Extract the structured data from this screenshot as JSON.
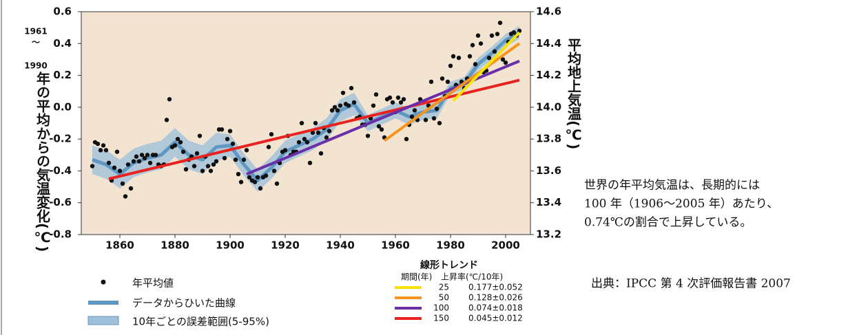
{
  "chart_data": {
    "type": "scatter",
    "ylabel": [
      "1961",
      "〜",
      "1990",
      "年の平均からの気温変化(℃)"
    ],
    "y2label": "平均地上気温(℃)",
    "background": "#f3e4d2",
    "xlim": [
      1846,
      2009
    ],
    "xticks": [
      1860,
      1880,
      1900,
      1920,
      1940,
      1960,
      1980,
      2000
    ],
    "ylim": [
      -0.8,
      0.6
    ],
    "yticks": [
      -0.8,
      -0.6,
      -0.4,
      -0.2,
      {
        "value": 0,
        "label": "0.0"
      },
      0.2,
      0.4,
      0.6
    ],
    "y2lim": [
      13.2,
      14.6
    ],
    "y2ticks": [
      13.2,
      13.4,
      13.6,
      13.8,
      {
        "value": 14,
        "label": "14.0"
      },
      14.2,
      14.4,
      14.6
    ],
    "series": [
      {
        "name": "年平均値",
        "color": "#111111",
        "x": [
          1850,
          1851,
          1852,
          1853,
          1854,
          1855,
          1856,
          1857,
          1858,
          1859,
          1860,
          1861,
          1862,
          1863,
          1864,
          1865,
          1866,
          1867,
          1868,
          1869,
          1870,
          1871,
          1872,
          1873,
          1874,
          1875,
          1876,
          1877,
          1878,
          1879,
          1880,
          1881,
          1882,
          1883,
          1884,
          1885,
          1886,
          1887,
          1888,
          1889,
          1890,
          1891,
          1892,
          1893,
          1894,
          1895,
          1896,
          1897,
          1898,
          1899,
          1900,
          1901,
          1902,
          1903,
          1904,
          1905,
          1906,
          1907,
          1908,
          1909,
          1910,
          1911,
          1912,
          1913,
          1914,
          1915,
          1916,
          1917,
          1918,
          1919,
          1920,
          1921,
          1922,
          1923,
          1924,
          1925,
          1926,
          1927,
          1928,
          1929,
          1930,
          1931,
          1932,
          1933,
          1934,
          1935,
          1936,
          1937,
          1938,
          1939,
          1940,
          1941,
          1942,
          1943,
          1944,
          1945,
          1946,
          1947,
          1948,
          1949,
          1950,
          1951,
          1952,
          1953,
          1954,
          1955,
          1956,
          1957,
          1958,
          1959,
          1960,
          1961,
          1962,
          1963,
          1964,
          1965,
          1966,
          1967,
          1968,
          1969,
          1970,
          1971,
          1972,
          1973,
          1974,
          1975,
          1976,
          1977,
          1978,
          1979,
          1980,
          1981,
          1982,
          1983,
          1984,
          1985,
          1986,
          1987,
          1988,
          1989,
          1990,
          1991,
          1992,
          1993,
          1994,
          1995,
          1996,
          1997,
          1998,
          1999,
          2000,
          2001,
          2002,
          2003,
          2004,
          2005
        ],
        "values": [
          -0.37,
          -0.22,
          -0.23,
          -0.27,
          -0.24,
          -0.27,
          -0.35,
          -0.46,
          -0.38,
          -0.28,
          -0.4,
          -0.48,
          -0.56,
          -0.36,
          -0.51,
          -0.34,
          -0.31,
          -0.34,
          -0.3,
          -0.32,
          -0.3,
          -0.35,
          -0.3,
          -0.3,
          -0.36,
          -0.37,
          -0.36,
          -0.08,
          0.05,
          -0.25,
          -0.24,
          -0.2,
          -0.22,
          -0.28,
          -0.39,
          -0.33,
          -0.31,
          -0.37,
          -0.29,
          -0.18,
          -0.4,
          -0.31,
          -0.37,
          -0.4,
          -0.36,
          -0.34,
          -0.14,
          -0.14,
          -0.32,
          -0.2,
          -0.15,
          -0.23,
          -0.33,
          -0.42,
          -0.47,
          -0.33,
          -0.27,
          -0.44,
          -0.46,
          -0.47,
          -0.44,
          -0.51,
          -0.44,
          -0.43,
          -0.25,
          -0.17,
          -0.4,
          -0.48,
          -0.35,
          -0.28,
          -0.27,
          -0.18,
          -0.3,
          -0.28,
          -0.28,
          -0.22,
          -0.1,
          -0.2,
          -0.22,
          -0.35,
          -0.16,
          -0.1,
          -0.16,
          -0.29,
          -0.13,
          -0.19,
          -0.15,
          -0.02,
          0.0,
          -0.02,
          0.01,
          0.09,
          0.02,
          0.01,
          0.12,
          0.03,
          -0.07,
          -0.06,
          -0.11,
          -0.11,
          -0.18,
          -0.07,
          0.01,
          0.08,
          -0.12,
          -0.14,
          -0.19,
          0.05,
          0.06,
          0.03,
          -0.03,
          0.06,
          0.03,
          0.05,
          -0.2,
          -0.11,
          -0.06,
          -0.02,
          -0.08,
          0.05,
          0.03,
          -0.08,
          0.01,
          0.16,
          -0.07,
          -0.01,
          -0.1,
          0.18,
          0.07,
          0.16,
          0.26,
          0.32,
          0.14,
          0.31,
          0.16,
          0.12,
          0.18,
          0.32,
          0.39,
          0.27,
          0.45,
          0.4,
          0.22,
          0.23,
          0.31,
          0.45,
          0.35,
          0.46,
          0.53,
          0.3,
          0.28,
          0.41,
          0.46,
          0.47,
          0.45,
          0.48
        ]
      }
    ],
    "smooth": {
      "name": "データからひいた曲線",
      "color": "#5f97c2",
      "x": [
        1850,
        1855,
        1860,
        1865,
        1870,
        1875,
        1880,
        1885,
        1890,
        1895,
        1900,
        1905,
        1910,
        1915,
        1920,
        1925,
        1930,
        1935,
        1940,
        1945,
        1950,
        1955,
        1960,
        1965,
        1970,
        1975,
        1980,
        1985,
        1990,
        1995,
        2000,
        2005
      ],
      "values": [
        -0.33,
        -0.36,
        -0.42,
        -0.35,
        -0.32,
        -0.3,
        -0.22,
        -0.3,
        -0.33,
        -0.25,
        -0.24,
        -0.36,
        -0.46,
        -0.38,
        -0.28,
        -0.24,
        -0.2,
        -0.14,
        -0.02,
        0.02,
        -0.1,
        -0.06,
        -0.02,
        -0.06,
        -0.03,
        -0.02,
        0.12,
        0.15,
        0.27,
        0.34,
        0.42,
        0.47
      ]
    },
    "band": {
      "name": "10年ごとの誤差範囲(5-95%)",
      "color": "#9fc0da",
      "x": [
        1850,
        1855,
        1860,
        1865,
        1870,
        1875,
        1880,
        1885,
        1890,
        1895,
        1900,
        1905,
        1910,
        1915,
        1920,
        1925,
        1930,
        1935,
        1940,
        1945,
        1950,
        1955,
        1960,
        1965,
        1970,
        1975,
        1980,
        1985,
        1990,
        1995,
        2000,
        2005
      ],
      "lower": [
        -0.42,
        -0.45,
        -0.51,
        -0.44,
        -0.41,
        -0.39,
        -0.31,
        -0.39,
        -0.42,
        -0.34,
        -0.31,
        -0.43,
        -0.53,
        -0.45,
        -0.35,
        -0.31,
        -0.27,
        -0.21,
        -0.09,
        -0.05,
        -0.15,
        -0.11,
        -0.07,
        -0.11,
        -0.08,
        -0.07,
        0.08,
        0.11,
        0.23,
        0.3,
        0.38,
        0.43
      ],
      "upper": [
        -0.24,
        -0.27,
        -0.33,
        -0.26,
        -0.23,
        -0.21,
        -0.13,
        -0.21,
        -0.24,
        -0.16,
        -0.17,
        -0.29,
        -0.39,
        -0.31,
        -0.21,
        -0.17,
        -0.13,
        -0.07,
        0.05,
        0.09,
        -0.05,
        -0.01,
        0.03,
        -0.01,
        0.02,
        0.03,
        0.16,
        0.19,
        0.31,
        0.38,
        0.46,
        0.51
      ]
    },
    "trend": {
      "title": "線形トレンド",
      "period_header": "期間(年)",
      "rate_header": "上昇率(℃/10年)",
      "series": [
        {
          "name": "25",
          "rate": "0.177±0.052",
          "color": "#f5e400",
          "x": [
            1981,
            2005
          ],
          "values": [
            0.04,
            0.47
          ]
        },
        {
          "name": "50",
          "rate": "0.128±0.026",
          "color": "#f7941d",
          "x": [
            1956,
            2005
          ],
          "values": [
            -0.21,
            0.4
          ]
        },
        {
          "name": "100",
          "rate": "0.074±0.018",
          "color": "#6a2fa8",
          "x": [
            1906,
            2005
          ],
          "values": [
            -0.42,
            0.29
          ]
        },
        {
          "name": "150",
          "rate": "0.045±0.012",
          "color": "#e8231f",
          "x": [
            1856,
            2005
          ],
          "values": [
            -0.45,
            0.17
          ]
        }
      ]
    }
  },
  "note": [
    "世界の年平均気温は、長期的には",
    "100 年（1906〜2005 年）あたり、",
    "0.74℃の割合で上昇している。"
  ],
  "source": "出典：IPCC 第 4 次評価報告書 2007"
}
